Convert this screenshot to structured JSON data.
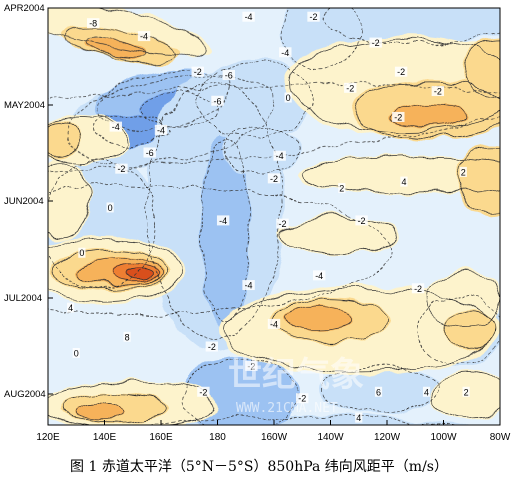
{
  "caption": "图 1  赤道太平洋（5°N－5°S）850hPa 纬向风距平（m/s）",
  "watermark": {
    "cn": "世纪气象",
    "url": "WWW.21CMA.NET"
  },
  "colors": {
    "neg6": "#6f9fe8",
    "neg4": "#9cc2f2",
    "neg2": "#c8e0f8",
    "neg0": "#e4f1fc",
    "pos0": "#fdf3cc",
    "pos2": "#fbd98e",
    "pos4": "#f6b25a",
    "pos6": "#ee7e33",
    "pos8": "#d9501c"
  },
  "chart_data": {
    "type": "heatmap",
    "title": "",
    "xlabel": "",
    "ylabel": "",
    "x_ticks": [
      "120E",
      "140E",
      "160E",
      "180",
      "160W",
      "140W",
      "120W",
      "100W",
      "80W"
    ],
    "y_ticks": [
      "APR2004",
      "MAY2004",
      "JUN2004",
      "JUL2004",
      "AUG2004"
    ],
    "x_range_deg": [
      120,
      280
    ],
    "contour_interval": 2,
    "contour_labels": [
      {
        "v": "-8",
        "lon": 136,
        "day": 5
      },
      {
        "v": "-4",
        "lon": 154,
        "day": 9
      },
      {
        "v": "-4",
        "lon": 191,
        "day": 3
      },
      {
        "v": "-2",
        "lon": 214,
        "day": 3
      },
      {
        "v": "-4",
        "lon": 204,
        "day": 14
      },
      {
        "v": "-2",
        "lon": 236,
        "day": 11
      },
      {
        "v": "-2",
        "lon": 173,
        "day": 20
      },
      {
        "v": "-6",
        "lon": 184,
        "day": 21
      },
      {
        "v": "-2",
        "lon": 227,
        "day": 25
      },
      {
        "v": "-2",
        "lon": 245,
        "day": 20
      },
      {
        "v": "-2",
        "lon": 258,
        "day": 26
      },
      {
        "v": "-6",
        "lon": 180,
        "day": 29
      },
      {
        "v": "0",
        "lon": 205,
        "day": 28
      },
      {
        "v": "-2",
        "lon": 244,
        "day": 34
      },
      {
        "v": "-4",
        "lon": 144,
        "day": 37
      },
      {
        "v": "-6",
        "lon": 156,
        "day": 45
      },
      {
        "v": "-4",
        "lon": 160,
        "day": 38
      },
      {
        "v": "-2",
        "lon": 146,
        "day": 50
      },
      {
        "v": "-4",
        "lon": 202,
        "day": 46
      },
      {
        "v": "-2",
        "lon": 200,
        "day": 53
      },
      {
        "v": "2",
        "lon": 224,
        "day": 56
      },
      {
        "v": "4",
        "lon": 246,
        "day": 54
      },
      {
        "v": "2",
        "lon": 267,
        "day": 51
      },
      {
        "v": "0",
        "lon": 142,
        "day": 62
      },
      {
        "v": "-4",
        "lon": 182,
        "day": 66
      },
      {
        "v": "-2",
        "lon": 203,
        "day": 67
      },
      {
        "v": "-2",
        "lon": 231,
        "day": 66
      },
      {
        "v": "0",
        "lon": 132,
        "day": 76
      },
      {
        "v": "-4",
        "lon": 191,
        "day": 86
      },
      {
        "v": "-4",
        "lon": 216,
        "day": 83
      },
      {
        "v": "-2",
        "lon": 251,
        "day": 87
      },
      {
        "v": "4",
        "lon": 128,
        "day": 93
      },
      {
        "v": "-4",
        "lon": 200,
        "day": 98
      },
      {
        "v": "8",
        "lon": 148,
        "day": 102
      },
      {
        "v": "-2",
        "lon": 178,
        "day": 105
      },
      {
        "v": "0",
        "lon": 130,
        "day": 107
      },
      {
        "v": "-2",
        "lon": 192,
        "day": 111
      },
      {
        "v": "-2",
        "lon": 175,
        "day": 119
      },
      {
        "v": "6",
        "lon": 237,
        "day": 119
      },
      {
        "v": "4",
        "lon": 254,
        "day": 119
      },
      {
        "v": "-2",
        "lon": 210,
        "day": 121
      },
      {
        "v": "2",
        "lon": 268,
        "day": 119
      },
      {
        "v": "4",
        "lon": 230,
        "day": 127
      },
      {
        "v": "-2",
        "lon": 233,
        "day": 135
      },
      {
        "v": "-2",
        "lon": 128,
        "day": 141
      },
      {
        "v": "-4",
        "lon": 134,
        "day": 145
      },
      {
        "v": "-4",
        "lon": 191,
        "day": 145
      },
      {
        "v": "0",
        "lon": 214,
        "day": 149
      }
    ]
  }
}
